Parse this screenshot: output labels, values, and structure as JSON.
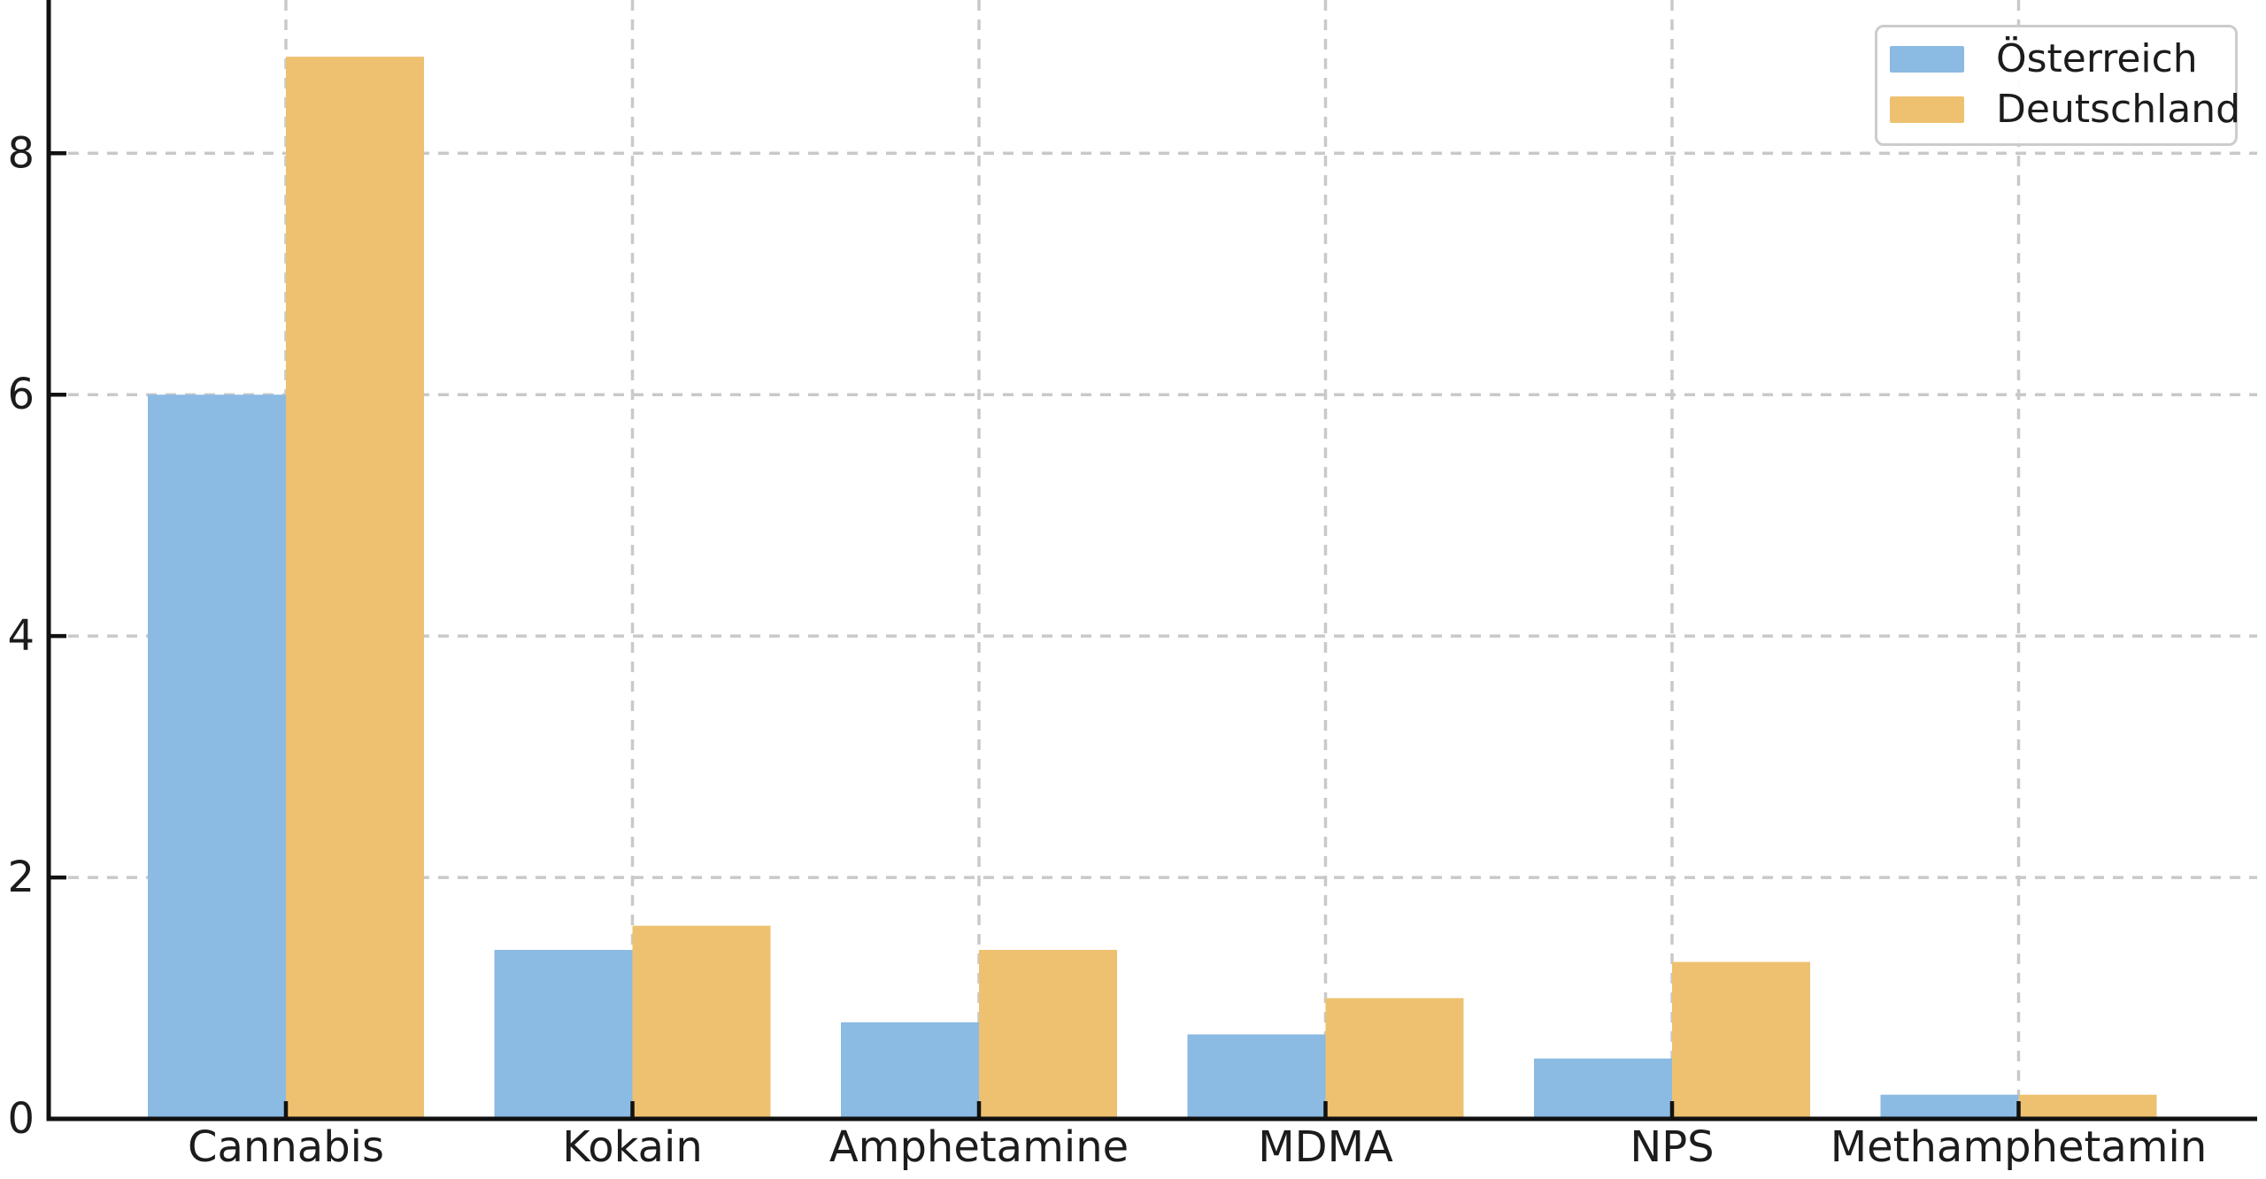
{
  "chart_data": {
    "type": "bar",
    "title": "",
    "xlabel": "",
    "ylabel": "",
    "categories": [
      "Cannabis",
      "Kokain",
      "Amphetamine",
      "MDMA",
      "NPS",
      "Methamphetamin"
    ],
    "series": [
      {
        "name": "Österreich",
        "color": "#8BBAE3",
        "values": [
          6.0,
          1.4,
          0.8,
          0.7,
          0.5,
          0.2
        ]
      },
      {
        "name": "Deutschland",
        "color": "#EDC170",
        "values": [
          8.8,
          1.6,
          1.4,
          1.0,
          1.3,
          0.2
        ]
      }
    ],
    "yticks": [
      0,
      2,
      4,
      6,
      8
    ],
    "ylim": [
      0,
      9.27
    ],
    "grid": true,
    "grid_style": "dashed",
    "grid_color": "#c9c9c9",
    "axis_color": "#111111",
    "text_color": "#1c1c1c",
    "legend_position": "upper right",
    "bar_width_fraction": 0.4
  }
}
